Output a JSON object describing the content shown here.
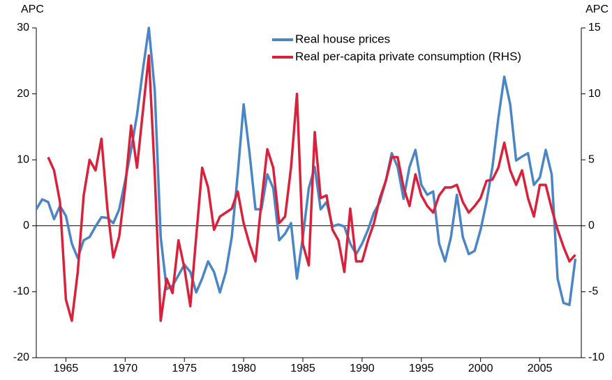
{
  "chart_data": {
    "type": "line",
    "y_label": "APC",
    "y2_label": "APC",
    "x": [
      1962.5,
      1963,
      1963.5,
      1964,
      1964.5,
      1965,
      1965.5,
      1966,
      1966.5,
      1967,
      1967.5,
      1968,
      1968.5,
      1969,
      1969.5,
      1970,
      1970.5,
      1971,
      1971.5,
      1972,
      1972.5,
      1973,
      1973.5,
      1974,
      1974.5,
      1975,
      1975.5,
      1976,
      1976.5,
      1977,
      1977.5,
      1978,
      1978.5,
      1979,
      1979.5,
      1980,
      1980.5,
      1981,
      1981.5,
      1982,
      1982.5,
      1983,
      1983.5,
      1984,
      1984.5,
      1985,
      1985.5,
      1986,
      1986.5,
      1987,
      1987.5,
      1988,
      1988.5,
      1989,
      1989.5,
      1990,
      1990.5,
      1991,
      1991.5,
      1992,
      1992.5,
      1993,
      1993.5,
      1994,
      1994.5,
      1995,
      1995.5,
      1996,
      1996.5,
      1997,
      1997.5,
      1998,
      1998.5,
      1999,
      1999.5,
      2000,
      2000.5,
      2001,
      2001.5,
      2002,
      2002.5,
      2003,
      2003.5,
      2004,
      2004.5,
      2005,
      2005.5,
      2006,
      2006.5,
      2007,
      2007.5,
      2008
    ],
    "series": [
      {
        "name": "Real house prices",
        "color": "#4a86c5",
        "values": [
          2.5,
          4,
          3.6,
          1,
          3,
          1.5,
          -2.7,
          -4.9,
          -2.2,
          -1.7,
          -0.1,
          1.3,
          1.2,
          0.4,
          2.5,
          6.8,
          11.5,
          16.8,
          23.7,
          30,
          20.5,
          -1.7,
          -9.6,
          -9.1,
          -7.5,
          -5.9,
          -7,
          -10.1,
          -8,
          -5.4,
          -7,
          -10.1,
          -7,
          -1.7,
          7.8,
          18.4,
          11,
          2.5,
          2.5,
          7.8,
          5.7,
          -2.2,
          -1.2,
          0.4,
          -8,
          -1.7,
          5.7,
          8.9,
          2.5,
          3.6,
          -0.1,
          0.2,
          -0.1,
          -2.7,
          -4.3,
          -2.7,
          -0.6,
          2,
          3.6,
          6.8,
          11,
          8.9,
          4.1,
          8.9,
          11.5,
          6.2,
          4.7,
          5.2,
          -2.7,
          -5.4,
          -1.7,
          4.7,
          -1.7,
          -4.3,
          -3.8,
          -0.6,
          3.6,
          8.9,
          16.3,
          22.6,
          18.4,
          9.9,
          10.5,
          11,
          6.2,
          7.3,
          11.5,
          7.8,
          -8,
          -11.7,
          -12,
          -5
        ]
      },
      {
        "name": "Real per-capita private consumption (RHS)",
        "color": "#d9213b",
        "axis": "y2",
        "values": [
          null,
          null,
          5.2,
          4.2,
          1.8,
          -5.6,
          -7.2,
          -3.5,
          2.3,
          5,
          4.2,
          6.6,
          1.3,
          -2.4,
          -0.8,
          2.9,
          7.6,
          4.4,
          8.7,
          12.9,
          3.9,
          -7.2,
          -4,
          -5.1,
          -1.1,
          -3.2,
          -6.1,
          -0.8,
          4.4,
          2.9,
          -0.3,
          0.7,
          1,
          1.3,
          2.6,
          0.2,
          -1.4,
          -2.7,
          1.8,
          5.8,
          4.4,
          0.2,
          0.7,
          4.4,
          10,
          -1.4,
          -3,
          7.1,
          2.1,
          2.3,
          -0.3,
          -1.1,
          -3.5,
          1.3,
          -2.7,
          -2.7,
          -1.1,
          0.2,
          2.1,
          3.4,
          5.2,
          5.2,
          2.9,
          1.5,
          3.9,
          2.3,
          1.5,
          1,
          2.3,
          2.9,
          2.9,
          3.1,
          1.8,
          1,
          1.5,
          2.1,
          3.4,
          3.5,
          4.4,
          6.3,
          4.2,
          3.1,
          4.2,
          2.1,
          0.7,
          3.1,
          3.1,
          1.3,
          -0.3,
          -1.6,
          -2.7,
          -2.2
        ]
      }
    ],
    "xlim": [
      1962.5,
      2008.5
    ],
    "xticks": [
      1965,
      1970,
      1975,
      1980,
      1985,
      1990,
      1995,
      2000,
      2005
    ],
    "ylim": [
      -20,
      30
    ],
    "yticks": [
      -20,
      -10,
      0,
      10,
      20,
      30
    ],
    "y2lim": [
      -10,
      15
    ],
    "y2ticks": [
      -10,
      -5,
      0,
      5,
      10,
      15
    ],
    "zero_line": true,
    "legend": "top"
  }
}
